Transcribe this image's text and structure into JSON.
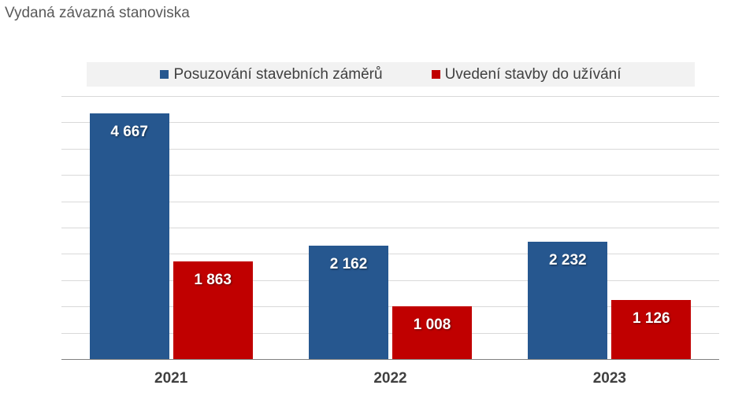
{
  "chart_data": {
    "type": "bar",
    "title": "Vydaná závazná stanoviska",
    "categories": [
      "2021",
      "2022",
      "2023"
    ],
    "series": [
      {
        "name": "Posuzování stavebních záměrů",
        "color": "#26578f",
        "values": [
          4667,
          2162,
          2232
        ],
        "labels": [
          "4 667",
          "2 162",
          "2 232"
        ]
      },
      {
        "name": "Uvedení stavby do užívání",
        "color": "#c00000",
        "values": [
          1863,
          1008,
          1126
        ],
        "labels": [
          "1 863",
          "1 008",
          "1 126"
        ]
      }
    ],
    "xlabel": "",
    "ylabel": "",
    "ylim": [
      0,
      5000
    ],
    "y_gridline_step": 500,
    "grid": true,
    "y_tick_labels_visible": false,
    "legend_position": "top",
    "data_labels": "inside-end"
  }
}
